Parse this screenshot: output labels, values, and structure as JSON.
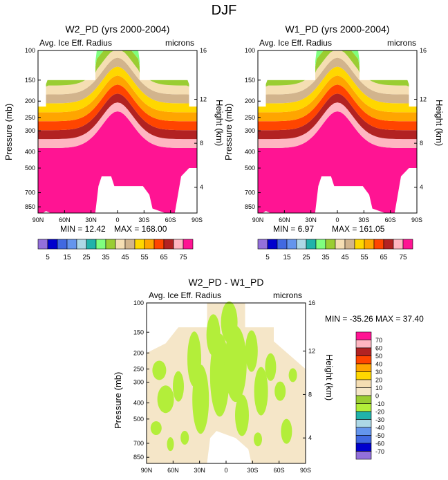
{
  "figure_title": "DJF",
  "variable_label": "Avg. Ice Eff. Radius",
  "units": "microns",
  "y_axis_left_label": "Pressure (mb)",
  "y_axis_right_label": "Height (km)",
  "colors": {
    "levels": [
      "#9370db",
      "#0000cd",
      "#4169e1",
      "#6495ed",
      "#add8e6",
      "#20b2aa",
      "#7fff7f",
      "#9acd32",
      "#f5deb3",
      "#d2b48c",
      "#ffd700",
      "#ffa500",
      "#ff4500",
      "#b22222",
      "#ffb6c1",
      "#ff1493"
    ],
    "diff_levels": [
      "#9370db",
      "#0000cd",
      "#4169e1",
      "#6495ed",
      "#add8e6",
      "#20b2aa",
      "#b3ee3a",
      "#9acd32",
      "#f5e6c8",
      "#f5deb3",
      "#ffd700",
      "#ffa500",
      "#ff4500",
      "#b22222",
      "#ffb6c1",
      "#ff1493"
    ]
  },
  "chart_data": [
    {
      "type": "heatmap",
      "title": "W2_PD (yrs 2000-2004)",
      "subtitle": "Avg. Ice Eff. Radius",
      "units": "microns",
      "xlabel": "",
      "ylabel": "Pressure (mb)",
      "ylabel_right": "Height (km)",
      "x_ticks": [
        "90N",
        "60N",
        "30N",
        "0",
        "30S",
        "60S",
        "90S"
      ],
      "x_values": [
        90,
        60,
        30,
        0,
        -30,
        -60,
        -90
      ],
      "y_ticks": [
        100,
        150,
        200,
        250,
        300,
        400,
        500,
        700,
        850
      ],
      "y_right_ticks": [
        16,
        12,
        8,
        4
      ],
      "ylim": [
        100,
        925
      ],
      "min": "12.42",
      "max": "168.00",
      "min_label": "MIN = 12.42",
      "max_label": "MAX = 168.00",
      "colorbar_labels": [
        "5",
        "15",
        "25",
        "35",
        "45",
        "55",
        "65",
        "75"
      ]
    },
    {
      "type": "heatmap",
      "title": "W1_PD (yrs 2000-2004)",
      "subtitle": "Avg. Ice Eff. Radius",
      "units": "microns",
      "xlabel": "",
      "ylabel": "Pressure (mb)",
      "ylabel_right": "Height (km)",
      "x_ticks": [
        "90N",
        "60N",
        "30N",
        "0",
        "30S",
        "60S",
        "90S"
      ],
      "x_values": [
        90,
        60,
        30,
        0,
        -30,
        -60,
        -90
      ],
      "y_ticks": [
        100,
        150,
        200,
        250,
        300,
        400,
        500,
        700,
        850
      ],
      "y_right_ticks": [
        16,
        12,
        8,
        4
      ],
      "ylim": [
        100,
        925
      ],
      "min": "6.97",
      "max": "161.05",
      "min_label": "MIN = 6.97",
      "max_label": "MAX = 161.05",
      "colorbar_labels": [
        "5",
        "15",
        "25",
        "35",
        "45",
        "55",
        "65",
        "75"
      ]
    },
    {
      "type": "heatmap",
      "title": "W2_PD - W1_PD",
      "subtitle": "Avg. Ice Eff. Radius",
      "units": "microns",
      "xlabel": "",
      "ylabel": "Pressure (mb)",
      "ylabel_right": "Height (km)",
      "x_ticks": [
        "90N",
        "60N",
        "30N",
        "0",
        "30S",
        "60S",
        "90S"
      ],
      "x_values": [
        90,
        60,
        30,
        0,
        -30,
        -60,
        -90
      ],
      "y_ticks": [
        100,
        150,
        200,
        250,
        300,
        400,
        500,
        700,
        850
      ],
      "y_right_ticks": [
        16,
        12,
        8,
        4
      ],
      "ylim": [
        100,
        925
      ],
      "min": "-35.26",
      "max": "37.40",
      "minmax_label": "MIN = -35.26  MAX = 37.40",
      "colorbar_labels": [
        "70",
        "60",
        "50",
        "40",
        "30",
        "20",
        "10",
        "0",
        "-10",
        "-20",
        "-30",
        "-40",
        "-50",
        "-60",
        "-70"
      ]
    }
  ]
}
